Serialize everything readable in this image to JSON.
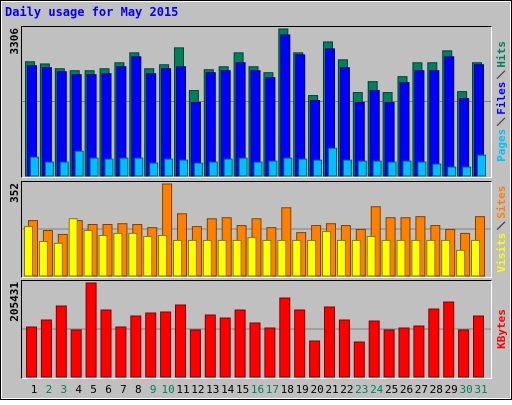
{
  "chart_data": [
    {
      "type": "bar",
      "title": "Daily usage for May 2015",
      "categories": [
        "1",
        "2",
        "3",
        "4",
        "5",
        "6",
        "7",
        "8",
        "9",
        "10",
        "11",
        "12",
        "13",
        "14",
        "15",
        "16",
        "17",
        "18",
        "19",
        "20",
        "21",
        "22",
        "23",
        "24",
        "25",
        "26",
        "27",
        "28",
        "29",
        "30",
        "31"
      ],
      "category_colors": [
        "#000000",
        "#00805c",
        "#00805c",
        "#000000",
        "#000000",
        "#000000",
        "#000000",
        "#000000",
        "#00805c",
        "#00805c",
        "#000000",
        "#000000",
        "#000000",
        "#000000",
        "#000000",
        "#00805c",
        "#00805c",
        "#000000",
        "#000000",
        "#000000",
        "#000000",
        "#000000",
        "#00805c",
        "#00805c",
        "#000000",
        "#000000",
        "#000000",
        "#000000",
        "#000000",
        "#00805c",
        "#00805c"
      ],
      "ylim": [
        0,
        3306
      ],
      "series": [
        {
          "name": "Hits",
          "color": "#00805c",
          "values": [
            2569,
            2520,
            2412,
            2368,
            2368,
            2412,
            2547,
            2770,
            2412,
            2502,
            2882,
            1921,
            2390,
            2457,
            2770,
            2457,
            2323,
            3306,
            2770,
            1809,
            3016,
            2613,
            1876,
            2122,
            1876,
            2234,
            2547,
            2547,
            2815,
            1898,
            2547
          ]
        },
        {
          "name": "Files",
          "color": "#0000ff",
          "values": [
            2480,
            2435,
            2345,
            2278,
            2278,
            2301,
            2457,
            2681,
            2301,
            2412,
            2457,
            1653,
            2323,
            2368,
            2547,
            2368,
            2211,
            3172,
            2725,
            1698,
            2859,
            2435,
            1653,
            1921,
            1653,
            2100,
            2368,
            2368,
            2681,
            1742,
            2502
          ]
        },
        {
          "name": "Pages",
          "color": "#00c0ff",
          "values": [
            424,
            313,
            313,
            558,
            402,
            380,
            402,
            402,
            290,
            380,
            357,
            290,
            313,
            380,
            402,
            313,
            335,
            402,
            380,
            357,
            625,
            357,
            335,
            335,
            313,
            335,
            313,
            268,
            201,
            201,
            469
          ]
        }
      ]
    },
    {
      "type": "bar",
      "ylim": [
        0,
        352
      ],
      "series": [
        {
          "name": "Sites",
          "color": "#ff8000",
          "values": [
            212,
            174,
            159,
            212,
            197,
            197,
            200,
            197,
            185,
            352,
            238,
            189,
            219,
            223,
            193,
            219,
            185,
            261,
            166,
            193,
            200,
            193,
            178,
            265,
            223,
            223,
            227,
            193,
            178,
            163,
            227
          ]
        },
        {
          "name": "Visits",
          "color": "#ffff00",
          "values": [
            189,
            132,
            125,
            219,
            174,
            155,
            163,
            163,
            151,
            155,
            136,
            136,
            136,
            136,
            136,
            147,
            136,
            136,
            136,
            136,
            170,
            136,
            136,
            151,
            136,
            136,
            136,
            136,
            136,
            98,
            136
          ]
        }
      ]
    },
    {
      "type": "bar",
      "ylim": [
        0,
        205431
      ],
      "series": [
        {
          "name": "KBytes",
          "color": "#ff0000",
          "values": [
            109250,
            124545,
            155135,
            102695,
            205431,
            146395,
            109250,
            133285,
            139840,
            142025,
            157320,
            102695,
            135470,
            128915,
            146395,
            117990,
            107065,
            172615,
            146395,
            78660,
            152950,
            124545,
            76475,
            122360,
            102695,
            107065,
            111435,
            148580,
            163875,
            102695,
            133285
          ]
        }
      ]
    }
  ]
}
